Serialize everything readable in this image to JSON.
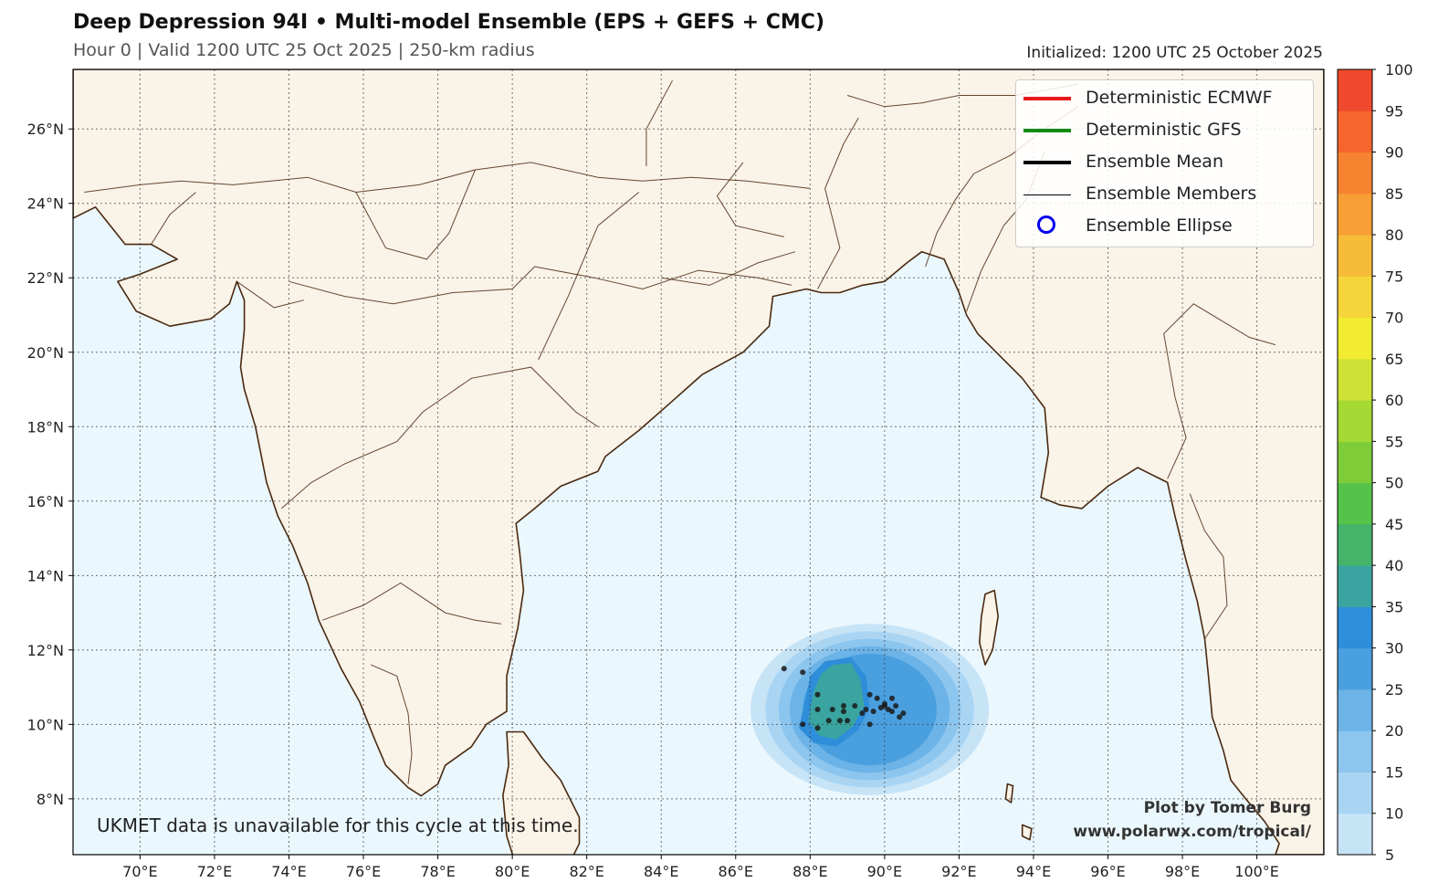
{
  "header": {
    "title": "Deep Depression 94I • Multi-model Ensemble (EPS + GEFS + CMC)",
    "subtitle": "Hour 0 | Valid 1200 UTC 25 Oct 2025 | 250-km radius",
    "initialized": "Initialized: 1200 UTC 25 October 2025"
  },
  "map": {
    "lon_range": [
      68.2,
      101.8
    ],
    "lat_range": [
      6.5,
      27.6
    ],
    "lon_ticks": [
      "70°E",
      "72°E",
      "74°E",
      "76°E",
      "78°E",
      "80°E",
      "82°E",
      "84°E",
      "86°E",
      "88°E",
      "90°E",
      "92°E",
      "94°E",
      "96°E",
      "98°E",
      "100°E"
    ],
    "lat_ticks": [
      "8°N",
      "10°N",
      "12°N",
      "14°N",
      "16°N",
      "18°N",
      "20°N",
      "22°N",
      "24°N",
      "26°N"
    ],
    "land_color": "#faf3e8",
    "ocean_color": "#eaf7fd",
    "coast_color": "#4a2a10"
  },
  "legend": {
    "items": [
      {
        "label": "Deterministic ECMWF",
        "color": "#e8191c",
        "style": "thick-line"
      },
      {
        "label": "Deterministic GFS",
        "color": "#138a14",
        "style": "thick-line"
      },
      {
        "label": "Ensemble Mean",
        "color": "#000000",
        "style": "thick-line"
      },
      {
        "label": "Ensemble Members",
        "color": "#000000",
        "style": "thin-line"
      },
      {
        "label": "Ensemble Ellipse",
        "color": "#0000ee",
        "style": "circle"
      }
    ]
  },
  "colorbar": {
    "labels": [
      "5",
      "10",
      "15",
      "20",
      "25",
      "30",
      "35",
      "40",
      "45",
      "50",
      "55",
      "60",
      "65",
      "70",
      "75",
      "80",
      "85",
      "90",
      "95",
      "100"
    ],
    "colors": [
      "#c7e4f7",
      "#a9d5f3",
      "#8cc5ee",
      "#6cb3e7",
      "#4a9fdf",
      "#2e8ed9",
      "#3aa5a0",
      "#45b36a",
      "#55c24a",
      "#7ecc37",
      "#a5d934",
      "#cde234",
      "#f1ec32",
      "#f6d53a",
      "#f7bb3a",
      "#f79e34",
      "#f6832f",
      "#f5652c",
      "#f1492d",
      "#ee3536"
    ]
  },
  "probability_field": {
    "center": {
      "lon": 89.6,
      "lat": 10.4
    },
    "levels": [
      {
        "value": 5,
        "rlon": 3.2,
        "rlat": 2.3
      },
      {
        "value": 10,
        "rlon": 2.8,
        "rlat": 2.1
      },
      {
        "value": 15,
        "rlon": 2.45,
        "rlat": 1.9
      },
      {
        "value": 20,
        "rlon": 2.15,
        "rlat": 1.7
      },
      {
        "value": 25,
        "rlon": 1.8,
        "rlat": 1.5
      }
    ]
  },
  "ensemble_member_positions": [
    {
      "lon": 87.3,
      "lat": 11.5
    },
    {
      "lon": 87.8,
      "lat": 11.4
    },
    {
      "lon": 88.2,
      "lat": 10.8
    },
    {
      "lon": 88.2,
      "lat": 10.4
    },
    {
      "lon": 88.6,
      "lat": 10.4
    },
    {
      "lon": 88.9,
      "lat": 10.5
    },
    {
      "lon": 89.2,
      "lat": 10.5
    },
    {
      "lon": 88.9,
      "lat": 10.35
    },
    {
      "lon": 89.6,
      "lat": 10.8
    },
    {
      "lon": 89.8,
      "lat": 10.7
    },
    {
      "lon": 90.0,
      "lat": 10.5
    },
    {
      "lon": 90.2,
      "lat": 10.7
    },
    {
      "lon": 90.3,
      "lat": 10.5
    },
    {
      "lon": 90.5,
      "lat": 10.3
    },
    {
      "lon": 90.1,
      "lat": 10.4
    },
    {
      "lon": 89.9,
      "lat": 10.45
    },
    {
      "lon": 89.5,
      "lat": 10.4
    },
    {
      "lon": 89.4,
      "lat": 10.3
    },
    {
      "lon": 89.7,
      "lat": 10.35
    },
    {
      "lon": 90.4,
      "lat": 10.2
    },
    {
      "lon": 87.8,
      "lat": 10.0
    },
    {
      "lon": 88.2,
      "lat": 9.9
    },
    {
      "lon": 88.5,
      "lat": 10.1
    },
    {
      "lon": 88.8,
      "lat": 10.1
    },
    {
      "lon": 89.0,
      "lat": 10.1
    },
    {
      "lon": 89.6,
      "lat": 10.0
    },
    {
      "lon": 90.0,
      "lat": 10.55
    },
    {
      "lon": 90.2,
      "lat": 10.35
    }
  ],
  "footer": {
    "note": "UKMET data is unavailable for this cycle at this time.",
    "credit_line1": "Plot by Tomer Burg",
    "credit_line2": "www.polarwx.com/tropical/"
  }
}
